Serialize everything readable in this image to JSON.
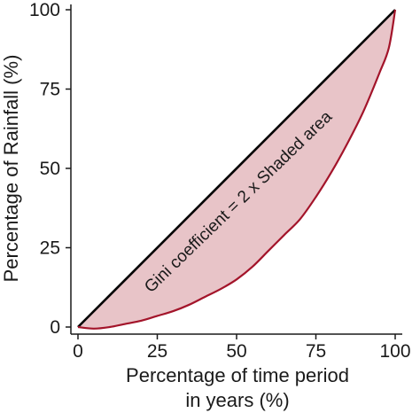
{
  "chart_data": {
    "type": "area",
    "xlabel_lines": [
      "Percentage of time period",
      "in years (%)"
    ],
    "ylabel": "Percentage of Rainfall (%)",
    "xlim": [
      0,
      100
    ],
    "ylim": [
      0,
      100
    ],
    "xticks": [
      0,
      25,
      50,
      75,
      100
    ],
    "yticks": [
      0,
      25,
      50,
      75,
      100
    ],
    "grid": false,
    "annotation": "Gini coefficient = 2 x Shaded area",
    "series": [
      {
        "role": "equality-line",
        "color": "#000000",
        "x": [
          0,
          100
        ],
        "y": [
          0,
          100
        ]
      },
      {
        "role": "lorenz-curve",
        "color": "#a3142a",
        "x": [
          0,
          5,
          10,
          15,
          20,
          25,
          30,
          35,
          40,
          45,
          50,
          55,
          60,
          65,
          70,
          75,
          80,
          85,
          90,
          95,
          98,
          100
        ],
        "y": [
          0,
          -0.5,
          0,
          1,
          2,
          3.5,
          5,
          7,
          9.5,
          12,
          15,
          19,
          24,
          29,
          34,
          41,
          49,
          58,
          68,
          80,
          88,
          100
        ]
      }
    ],
    "fill_color": "#e8c4c8"
  }
}
